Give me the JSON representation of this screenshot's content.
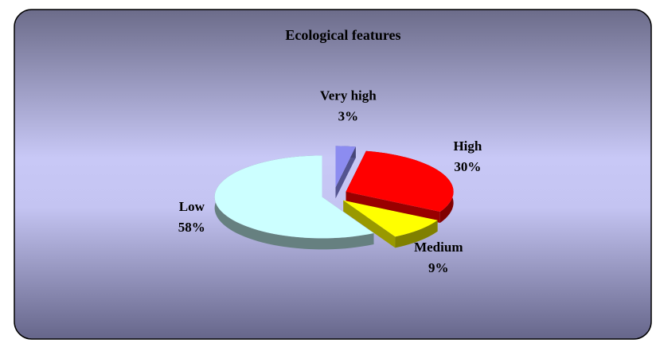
{
  "chart_data": {
    "type": "pie",
    "title": "Ecological features",
    "categories": [
      "Very high",
      "High",
      "Medium",
      "Low"
    ],
    "values": [
      3,
      30,
      9,
      58
    ],
    "value_labels": [
      "3%",
      "30%",
      "9%",
      "58%"
    ],
    "colors": [
      "#8c8cf0",
      "#ff0000",
      "#ffff00",
      "#ccffff"
    ]
  }
}
